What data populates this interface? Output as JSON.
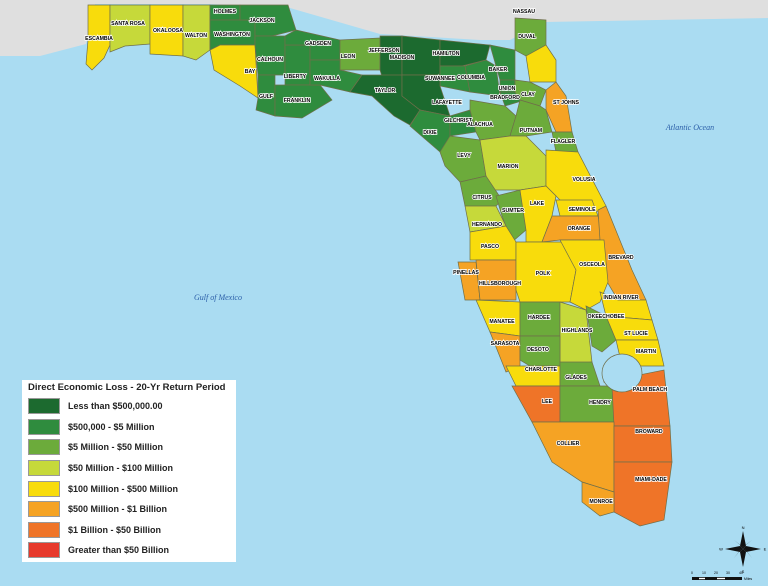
{
  "legend": {
    "title": "Direct Economic Loss - 20-Yr Return Period",
    "classes": [
      {
        "label": "Less than $500,000.00",
        "color": "#1c6a2f"
      },
      {
        "label": "$500,000 - $5 Million",
        "color": "#2f8c3e"
      },
      {
        "label": "$5 Million - $50 Million",
        "color": "#6cab3b"
      },
      {
        "label": "$50 Million - $100 Million",
        "color": "#c6d93a"
      },
      {
        "label": "$100 Million - $500 Million",
        "color": "#f8dc0c"
      },
      {
        "label": "$500 Million - $1 Billion",
        "color": "#f5a324"
      },
      {
        "label": "$1 Billion - $50 Billion",
        "color": "#ef7428"
      },
      {
        "label": "Greater than $50 Billion",
        "color": "#e73a2c"
      }
    ]
  },
  "water_labels": {
    "atlantic": "Atlantic Ocean",
    "gulf": "Gulf of Mexico"
  },
  "compass": {
    "north": "N",
    "south": "S",
    "east": "E",
    "west": "W"
  },
  "scale_bar": {
    "ticks": [
      "0",
      "10",
      "20",
      "30",
      "40"
    ],
    "unit": "Miles"
  },
  "counties": [
    {
      "name": "ESCAMBIA",
      "class": 4
    },
    {
      "name": "SANTA ROSA",
      "class": 3
    },
    {
      "name": "OKALOOSA",
      "class": 4
    },
    {
      "name": "WALTON",
      "class": 3
    },
    {
      "name": "HOLMES",
      "class": 1
    },
    {
      "name": "WASHINGTON",
      "class": 1
    },
    {
      "name": "JACKSON",
      "class": 1
    },
    {
      "name": "BAY",
      "class": 4
    },
    {
      "name": "CALHOUN",
      "class": 1
    },
    {
      "name": "GULF",
      "class": 1
    },
    {
      "name": "LIBERTY",
      "class": 1
    },
    {
      "name": "FRANKLIN",
      "class": 1
    },
    {
      "name": "GADSDEN",
      "class": 1
    },
    {
      "name": "LEON",
      "class": 2
    },
    {
      "name": "WAKULLA",
      "class": 1
    },
    {
      "name": "JEFFERSON",
      "class": 0
    },
    {
      "name": "MADISON",
      "class": 0
    },
    {
      "name": "TAYLOR",
      "class": 0
    },
    {
      "name": "HAMILTON",
      "class": 0
    },
    {
      "name": "SUWANNEE",
      "class": 1
    },
    {
      "name": "LAFAYETTE",
      "class": 0
    },
    {
      "name": "COLUMBIA",
      "class": 1
    },
    {
      "name": "BAKER",
      "class": 1
    },
    {
      "name": "UNION",
      "class": 1
    },
    {
      "name": "BRADFORD",
      "class": 1
    },
    {
      "name": "DIXIE",
      "class": 1
    },
    {
      "name": "GILCHRIST",
      "class": 1
    },
    {
      "name": "ALACHUA",
      "class": 2
    },
    {
      "name": "LEVY",
      "class": 2
    },
    {
      "name": "NASSAU",
      "class": 2
    },
    {
      "name": "DUVAL",
      "class": 4
    },
    {
      "name": "CLAY",
      "class": 2
    },
    {
      "name": "ST JOHNS",
      "class": 5
    },
    {
      "name": "PUTNAM",
      "class": 2
    },
    {
      "name": "FLAGLER",
      "class": 2
    },
    {
      "name": "MARION",
      "class": 3
    },
    {
      "name": "VOLUSIA",
      "class": 4
    },
    {
      "name": "CITRUS",
      "class": 2
    },
    {
      "name": "SUMTER",
      "class": 2
    },
    {
      "name": "HERNANDO",
      "class": 3
    },
    {
      "name": "LAKE",
      "class": 4
    },
    {
      "name": "SEMINOLE",
      "class": 4
    },
    {
      "name": "ORANGE",
      "class": 5
    },
    {
      "name": "BREVARD",
      "class": 5
    },
    {
      "name": "PASCO",
      "class": 4
    },
    {
      "name": "PINELLAS",
      "class": 5
    },
    {
      "name": "HILLSBOROUGH",
      "class": 5
    },
    {
      "name": "POLK",
      "class": 4
    },
    {
      "name": "OSCEOLA",
      "class": 4
    },
    {
      "name": "INDIAN RIVER",
      "class": 4
    },
    {
      "name": "MANATEE",
      "class": 4
    },
    {
      "name": "HARDEE",
      "class": 2
    },
    {
      "name": "HIGHLANDS",
      "class": 3
    },
    {
      "name": "OKEECHOBEE",
      "class": 2
    },
    {
      "name": "ST LUCIE",
      "class": 4
    },
    {
      "name": "MARTIN",
      "class": 4
    },
    {
      "name": "SARASOTA",
      "class": 5
    },
    {
      "name": "DESOTO",
      "class": 2
    },
    {
      "name": "CHARLOTTE",
      "class": 4
    },
    {
      "name": "GLADES",
      "class": 2
    },
    {
      "name": "LEE",
      "class": 6
    },
    {
      "name": "HENDRY",
      "class": 2
    },
    {
      "name": "PALM BEACH",
      "class": 6
    },
    {
      "name": "COLLIER",
      "class": 5
    },
    {
      "name": "BROWARD",
      "class": 6
    },
    {
      "name": "MIAMI-DADE",
      "class": 6
    },
    {
      "name": "MONROE",
      "class": 5
    }
  ]
}
